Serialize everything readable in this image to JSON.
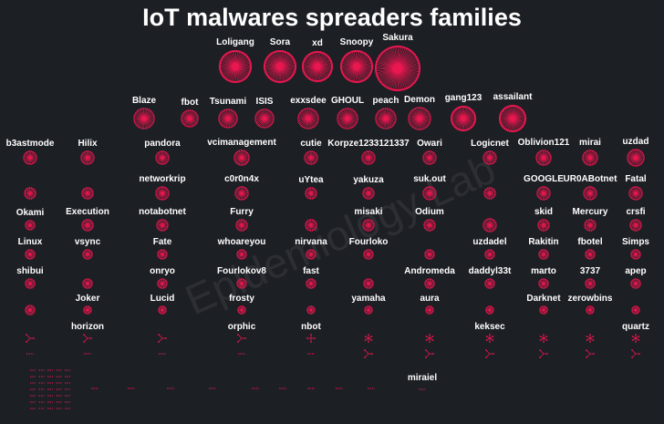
{
  "title": "IoT malwares spreaders families",
  "watermark": "Epidemiology Lab",
  "node_color": "#e8174f",
  "nodes": [
    "Loligang",
    "Sora",
    "xd",
    "Snoopy",
    "Sakura",
    "Blaze",
    "fbot",
    "Tsunami",
    "ISIS",
    "exxsdee",
    "GHOUL",
    "peach",
    "Demon",
    "gang123",
    "assailant",
    "b3astmode",
    "Hilix",
    "pandora",
    "vcimanagement",
    "cutie",
    "Korpze1233121337",
    "Owari",
    "Logicnet",
    "Oblivion121",
    "mirai",
    "uzdad",
    "networkrip",
    "c0r0n4x",
    "uYtea",
    "yakuza",
    "suk.out",
    "GOOGLE",
    "UR0ABotnet",
    "Fatal",
    "Okami",
    "Execution",
    "notabotnet",
    "Furry",
    "misaki",
    "Odium",
    "skid",
    "Mercury",
    "crsfi",
    "Linux",
    "vsync",
    "Fate",
    "whoareyou",
    "nirvana",
    "Fourloko",
    "uzdadel",
    "Rakitin",
    "fbotel",
    "Simps",
    "shibui",
    "onryo",
    "Fourlokov8",
    "fast",
    "Andromeda",
    "daddyl33t",
    "marto",
    "3737",
    "apep",
    "Joker",
    "Lucid",
    "frosty",
    "yamaha",
    "aura",
    "Darknet",
    "zerowbins",
    "horizon",
    "orphic",
    "nbot",
    "keksec",
    "quartz",
    "miraiel"
  ]
}
